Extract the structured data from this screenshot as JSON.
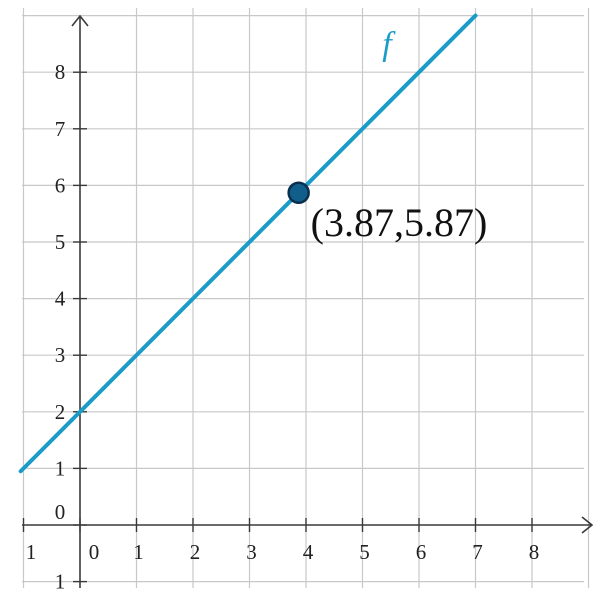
{
  "colors": {
    "background": "#ffffff",
    "grid": "#c8c8c8",
    "axis": "#3a3a3a",
    "function_line": "#1a9bc8",
    "point_fill": "#0f5f8a",
    "point_stroke": "#0b2f4f"
  },
  "chart_data": {
    "type": "line",
    "title": "",
    "xlabel": "",
    "ylabel": "",
    "xlim": [
      -1.05,
      9.1
    ],
    "ylim": [
      -1.1,
      9.2
    ],
    "grid": true,
    "x_ticks": [
      {
        "value": -1,
        "label": "1"
      },
      {
        "value": 0,
        "label": "0"
      },
      {
        "value": 1,
        "label": "1"
      },
      {
        "value": 2,
        "label": "2"
      },
      {
        "value": 3,
        "label": "3"
      },
      {
        "value": 4,
        "label": "4"
      },
      {
        "value": 5,
        "label": "5"
      },
      {
        "value": 6,
        "label": "6"
      },
      {
        "value": 7,
        "label": "7"
      },
      {
        "value": 8,
        "label": "8"
      }
    ],
    "y_ticks": [
      {
        "value": 0,
        "label": "0"
      },
      {
        "value": 1,
        "label": "1"
      },
      {
        "value": 2,
        "label": "2"
      },
      {
        "value": 3,
        "label": "3"
      },
      {
        "value": 4,
        "label": "4"
      },
      {
        "value": 5,
        "label": "5"
      },
      {
        "value": 6,
        "label": "6"
      },
      {
        "value": 7,
        "label": "7"
      },
      {
        "value": 8,
        "label": "8"
      },
      {
        "value": -1,
        "label": "1"
      }
    ],
    "series": [
      {
        "name": "f",
        "label": "f",
        "slope": 1,
        "intercept": 2,
        "x": [
          -1.05,
          7.0
        ],
        "y": [
          0.95,
          9.0
        ]
      }
    ],
    "points": [
      {
        "x": 3.87,
        "y": 5.87,
        "label": "(3.87,5.87)"
      }
    ]
  }
}
